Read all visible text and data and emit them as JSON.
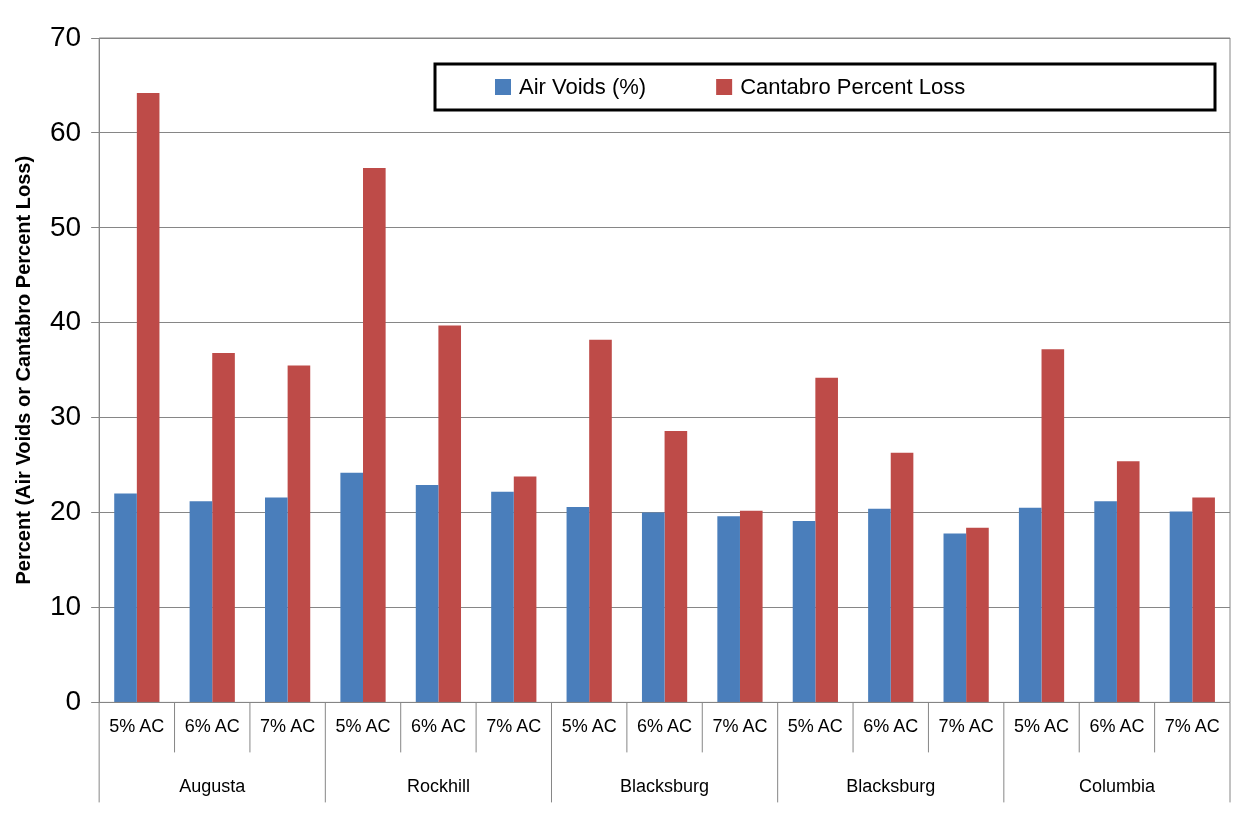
{
  "chart_data": {
    "type": "bar",
    "ylabel": "Percent (Air Voids or Cantabro Percent Loss)",
    "categories": [
      "5% AC",
      "6% AC",
      "7% AC",
      "5% AC",
      "6% AC",
      "7% AC",
      "5% AC",
      "6% AC",
      "7% AC",
      "5% AC",
      "6% AC",
      "7% AC",
      "5% AC",
      "6% AC",
      "7% AC"
    ],
    "series": [
      {
        "name": "Air Voids (%)",
        "color": "#4a7ebb",
        "values": [
          22.0,
          21.2,
          21.6,
          24.2,
          22.9,
          22.2,
          20.6,
          20.0,
          19.6,
          19.1,
          20.4,
          17.8,
          20.5,
          21.2,
          20.1
        ]
      },
      {
        "name": "Cantabro Percent Loss",
        "color": "#be4b48",
        "values": [
          64.2,
          36.8,
          35.5,
          56.3,
          39.7,
          23.8,
          38.2,
          28.6,
          20.2,
          34.2,
          26.3,
          18.4,
          37.2,
          25.4,
          21.6
        ]
      }
    ],
    "annotations": [
      "Augusta",
      "Rockhill",
      "Blacksburg",
      "Blacksburg",
      "Columbia"
    ],
    "ylim": [
      0,
      70
    ],
    "yticks": [
      0,
      10,
      20,
      30,
      40,
      50,
      60,
      70
    ],
    "grid": "y",
    "legend": "top right"
  }
}
